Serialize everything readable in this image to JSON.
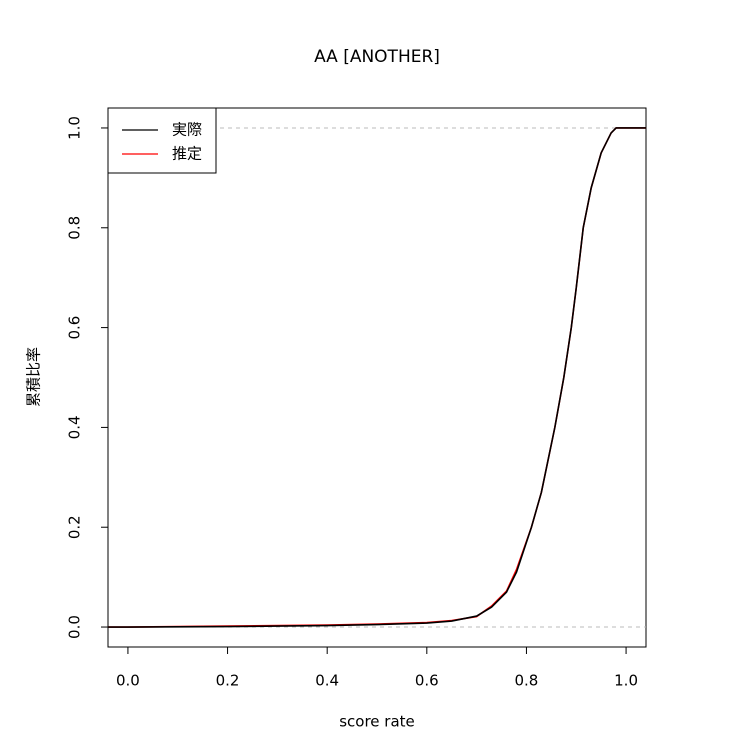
{
  "chart_data": {
    "type": "line",
    "title": "AA [ANOTHER]",
    "x_label": "score rate",
    "y_label": "累積比率",
    "x": [
      -0.04,
      0,
      0.2,
      0.4,
      0.5,
      0.6,
      0.65,
      0.7,
      0.73,
      0.76,
      0.78,
      0.81,
      0.83,
      0.857,
      0.875,
      0.89,
      0.9,
      0.914,
      0.93,
      0.95,
      0.97,
      0.98,
      1.0,
      1.04
    ],
    "series": [
      {
        "name": "実際",
        "color": "#000000",
        "values": [
          0,
          0,
          0.001,
          0.003,
          0.005,
          0.008,
          0.012,
          0.022,
          0.04,
          0.07,
          0.11,
          0.2,
          0.27,
          0.4,
          0.5,
          0.6,
          0.68,
          0.8,
          0.88,
          0.95,
          0.99,
          1.0,
          1.0,
          1.0
        ]
      },
      {
        "name": "推定",
        "color": "#ff0000",
        "values": [
          0,
          0,
          0.002,
          0.004,
          0.006,
          0.009,
          0.013,
          0.021,
          0.042,
          0.072,
          0.115,
          0.2,
          0.27,
          0.4,
          0.5,
          0.6,
          0.68,
          0.8,
          0.88,
          0.95,
          0.99,
          1.0,
          1.0,
          1.0
        ]
      }
    ],
    "xlim": [
      -0.04,
      1.04
    ],
    "ylim": [
      -0.04,
      1.04
    ],
    "xticks": [
      {
        "value": 0,
        "label": "0.0"
      },
      0.2,
      0.4,
      0.6,
      0.8,
      {
        "value": 1,
        "label": "1.0"
      }
    ],
    "yticks": [
      {
        "value": 0,
        "label": "0.0"
      },
      0.2,
      0.4,
      0.6,
      0.8,
      {
        "value": 1,
        "label": "1.0"
      }
    ],
    "reference_lines": [
      0,
      1
    ],
    "legend": "top-left"
  }
}
